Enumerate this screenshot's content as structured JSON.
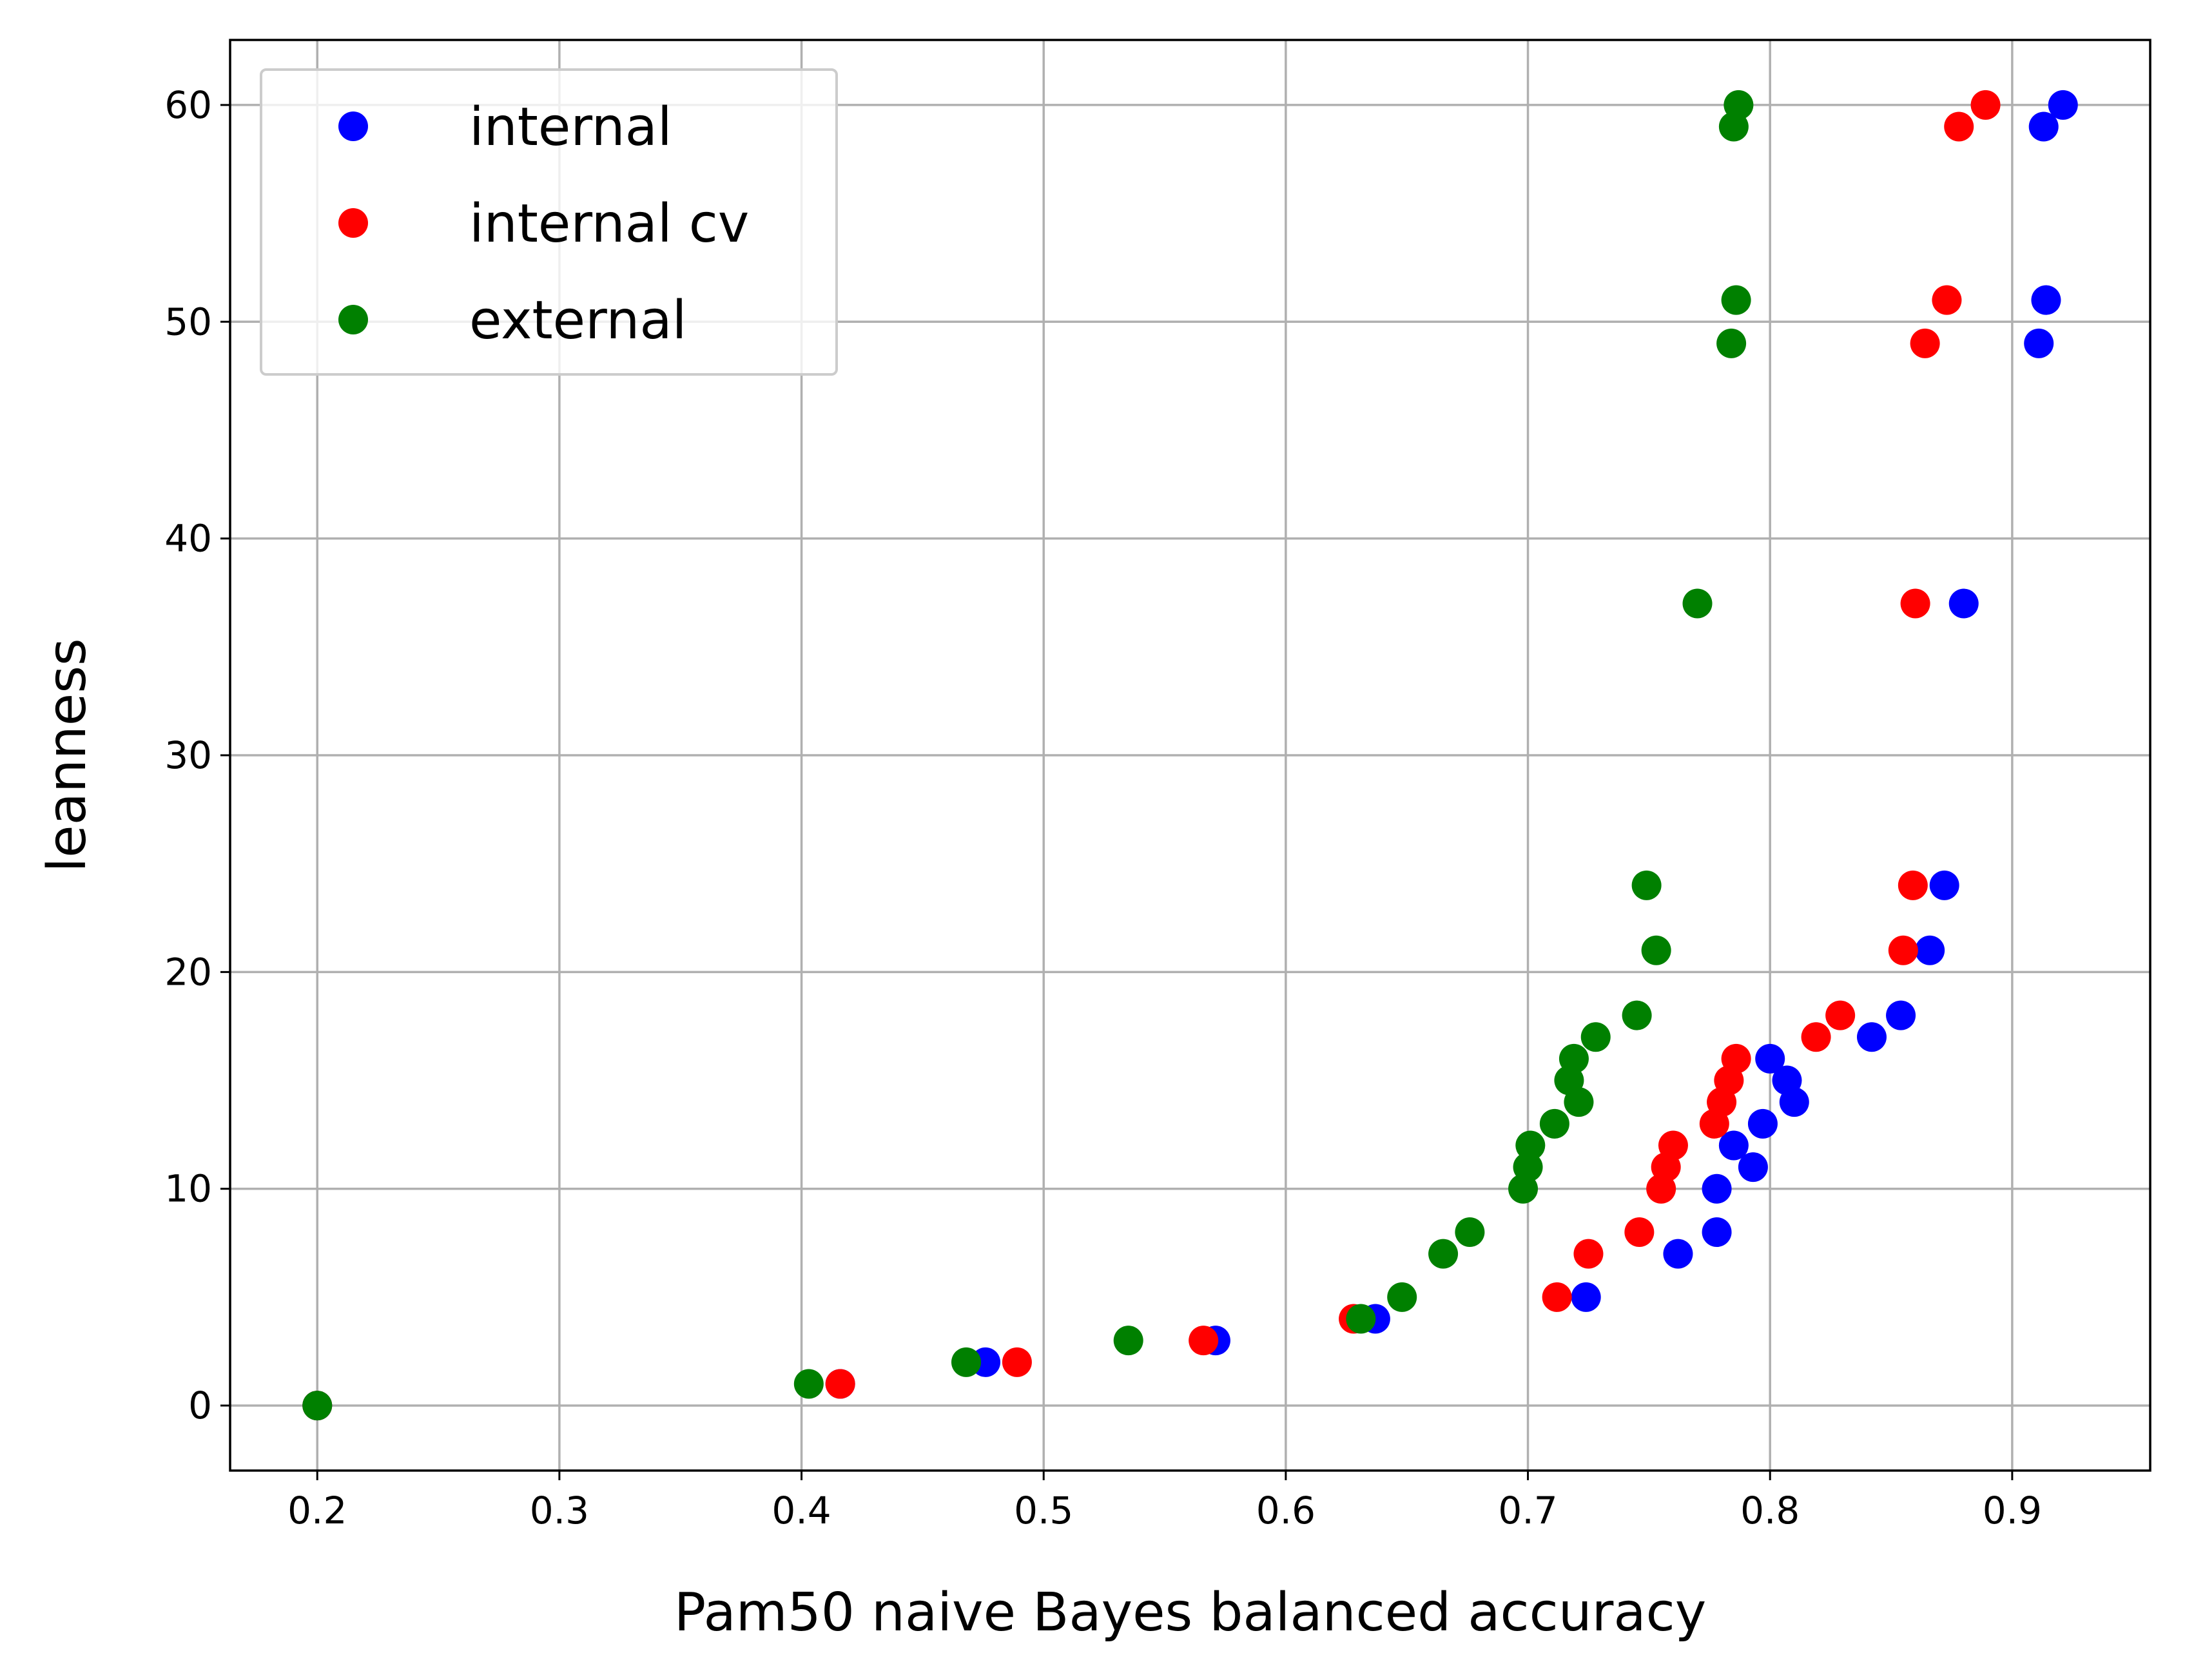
{
  "chart_data": {
    "type": "scatter",
    "xlabel": "Pam50 naive Bayes balanced accuracy",
    "ylabel": "leanness",
    "xlim": [
      0.164,
      0.957
    ],
    "ylim": [
      -3,
      63
    ],
    "xticks": [
      0.2,
      0.3,
      0.4,
      0.5,
      0.6,
      0.7,
      0.8,
      0.9
    ],
    "xtick_labels": [
      "0.2",
      "0.3",
      "0.4",
      "0.5",
      "0.6",
      "0.7",
      "0.8",
      "0.9"
    ],
    "yticks": [
      0,
      10,
      20,
      30,
      40,
      50,
      60
    ],
    "ytick_labels": [
      "0",
      "10",
      "20",
      "30",
      "40",
      "50",
      "60"
    ],
    "grid": true,
    "legend_position": "top-left",
    "series": [
      {
        "name": "internal",
        "color": "#0000ff",
        "points": [
          [
            0.2,
            0
          ],
          [
            0.416,
            1
          ],
          [
            0.476,
            2
          ],
          [
            0.571,
            3
          ],
          [
            0.637,
            4
          ],
          [
            0.724,
            5
          ],
          [
            0.762,
            7
          ],
          [
            0.778,
            8
          ],
          [
            0.778,
            10
          ],
          [
            0.793,
            11
          ],
          [
            0.785,
            12
          ],
          [
            0.797,
            13
          ],
          [
            0.81,
            14
          ],
          [
            0.807,
            15
          ],
          [
            0.8,
            16
          ],
          [
            0.842,
            17
          ],
          [
            0.854,
            18
          ],
          [
            0.866,
            21
          ],
          [
            0.872,
            24
          ],
          [
            0.88,
            37
          ],
          [
            0.911,
            49
          ],
          [
            0.914,
            51
          ],
          [
            0.913,
            59
          ],
          [
            0.921,
            60
          ]
        ]
      },
      {
        "name": "internal cv",
        "color": "#ff0000",
        "points": [
          [
            0.2,
            0
          ],
          [
            0.416,
            1
          ],
          [
            0.489,
            2
          ],
          [
            0.566,
            3
          ],
          [
            0.628,
            4
          ],
          [
            0.712,
            5
          ],
          [
            0.725,
            7
          ],
          [
            0.746,
            8
          ],
          [
            0.755,
            10
          ],
          [
            0.757,
            11
          ],
          [
            0.76,
            12
          ],
          [
            0.777,
            13
          ],
          [
            0.78,
            14
          ],
          [
            0.783,
            15
          ],
          [
            0.786,
            16
          ],
          [
            0.819,
            17
          ],
          [
            0.829,
            18
          ],
          [
            0.855,
            21
          ],
          [
            0.859,
            24
          ],
          [
            0.86,
            37
          ],
          [
            0.864,
            49
          ],
          [
            0.873,
            51
          ],
          [
            0.878,
            59
          ],
          [
            0.889,
            60
          ]
        ]
      },
      {
        "name": "external",
        "color": "#008000",
        "points": [
          [
            0.2,
            0
          ],
          [
            0.403,
            1
          ],
          [
            0.468,
            2
          ],
          [
            0.535,
            3
          ],
          [
            0.631,
            4
          ],
          [
            0.648,
            5
          ],
          [
            0.665,
            7
          ],
          [
            0.676,
            8
          ],
          [
            0.698,
            10
          ],
          [
            0.7,
            11
          ],
          [
            0.701,
            12
          ],
          [
            0.711,
            13
          ],
          [
            0.721,
            14
          ],
          [
            0.717,
            15
          ],
          [
            0.719,
            16
          ],
          [
            0.728,
            17
          ],
          [
            0.745,
            18
          ],
          [
            0.753,
            21
          ],
          [
            0.749,
            24
          ],
          [
            0.77,
            37
          ],
          [
            0.784,
            49
          ],
          [
            0.786,
            51
          ],
          [
            0.785,
            59
          ],
          [
            0.787,
            60
          ]
        ]
      }
    ]
  }
}
